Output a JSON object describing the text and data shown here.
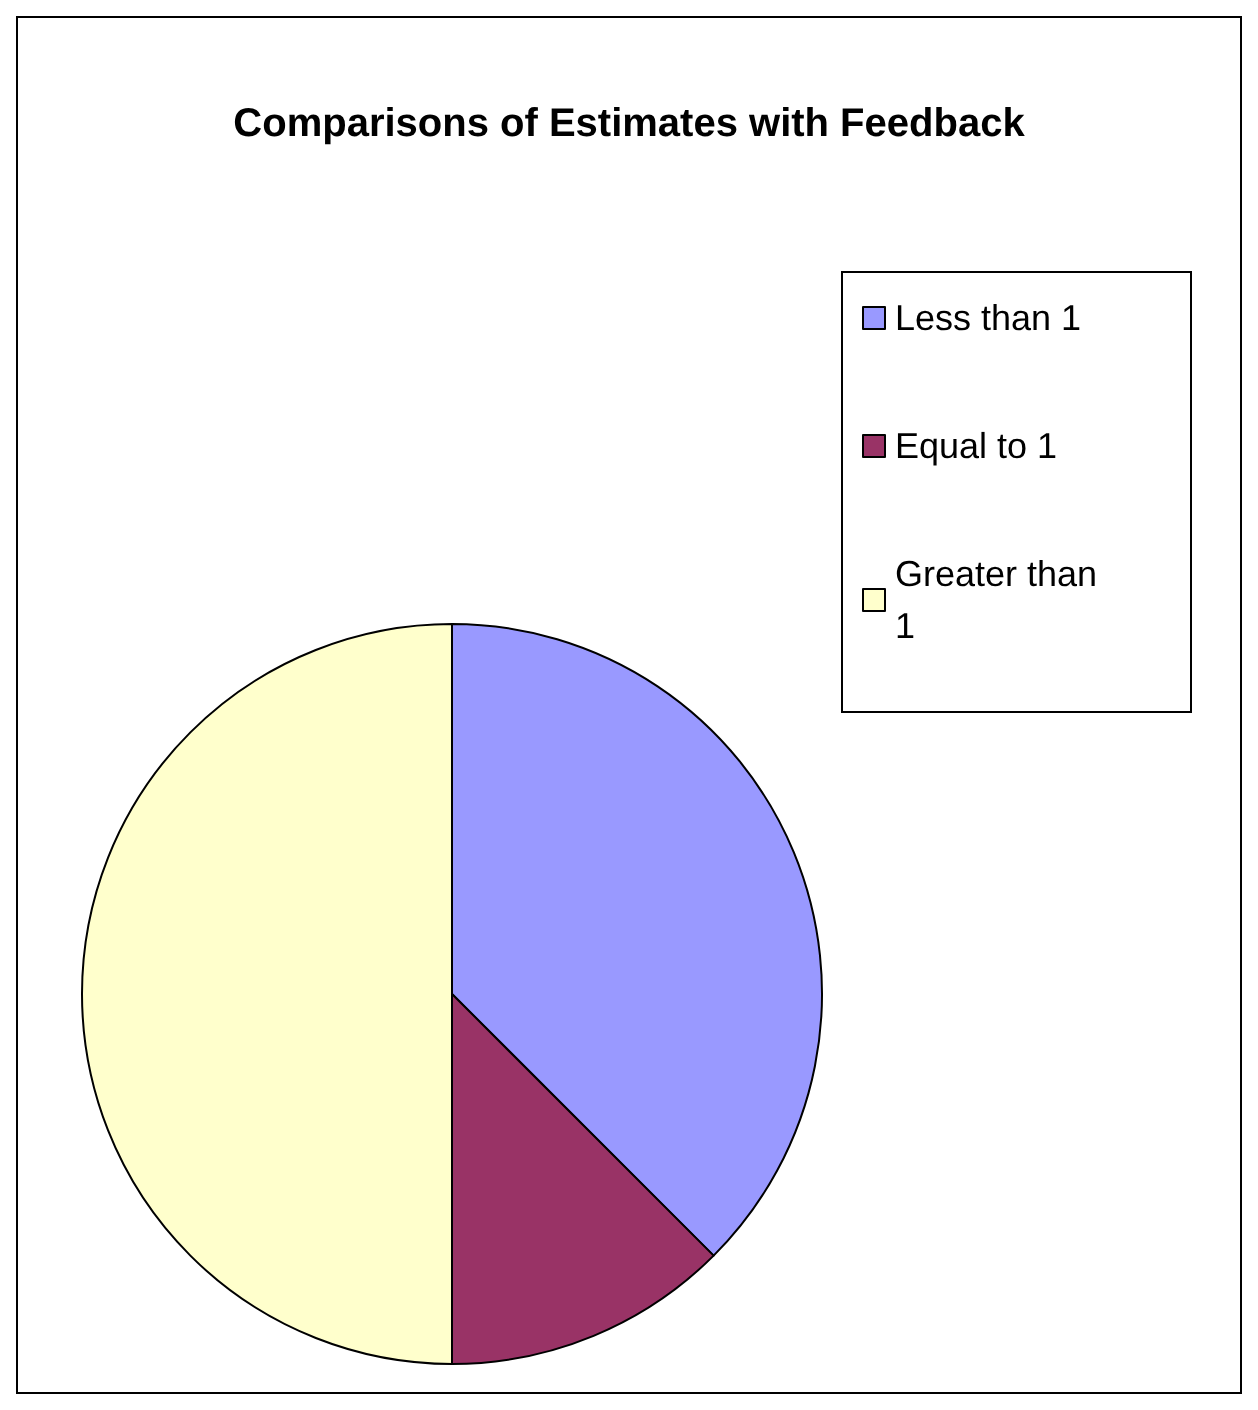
{
  "chart_data": {
    "type": "pie",
    "title": "Comparisons of Estimates with Feedback",
    "categories": [
      "Less than 1",
      "Equal to 1",
      "Greater than 1"
    ],
    "values": [
      37.5,
      12.5,
      50
    ],
    "colors": [
      "#9999ff",
      "#993366",
      "#ffffcc"
    ],
    "legend": "right"
  }
}
